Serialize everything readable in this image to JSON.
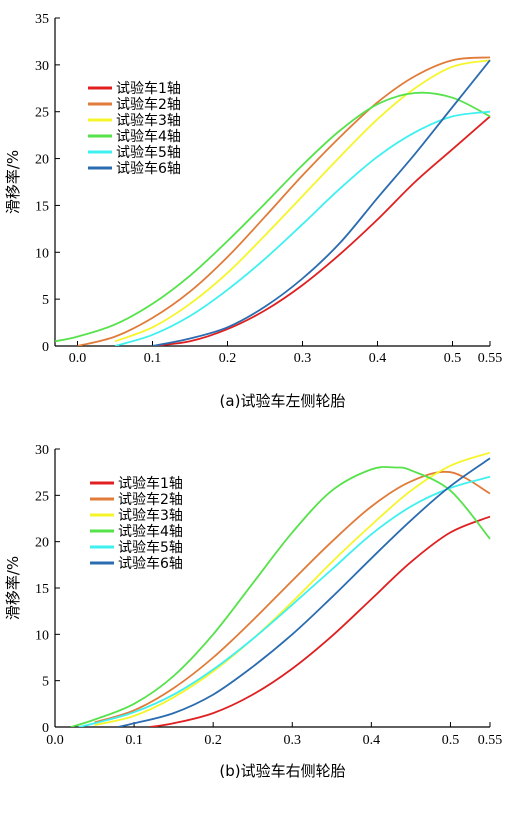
{
  "chart_data": [
    {
      "type": "line",
      "caption": "(a)试验车左侧轮胎",
      "ylabel": "滑移率/%",
      "xlabel": "",
      "xlim": [
        -0.03,
        0.55
      ],
      "ylim": [
        0,
        35
      ],
      "xticks": [
        "0.0",
        "0.1",
        "0.2",
        "0.3",
        "0.4",
        "0.5",
        "0.55"
      ],
      "xtick_values": [
        0.0,
        0.1,
        0.2,
        0.3,
        0.4,
        0.5,
        0.55
      ],
      "yticks": [
        "0",
        "5",
        "10",
        "15",
        "20",
        "25",
        "30",
        "35"
      ],
      "ytick_values": [
        0,
        5,
        10,
        15,
        20,
        25,
        30,
        35
      ],
      "legend_position": "upper-left",
      "series": [
        {
          "name": "试验车1轴",
          "color": "#e02020",
          "x": [
            0.1,
            0.15,
            0.2,
            0.25,
            0.3,
            0.35,
            0.4,
            0.45,
            0.5,
            0.55
          ],
          "y": [
            0.0,
            0.5,
            1.8,
            3.8,
            6.5,
            9.8,
            13.5,
            17.5,
            21.0,
            24.5
          ]
        },
        {
          "name": "试验车2轴",
          "color": "#e07b3a",
          "x": [
            0.0,
            0.05,
            0.1,
            0.15,
            0.2,
            0.25,
            0.3,
            0.35,
            0.4,
            0.45,
            0.5,
            0.55
          ],
          "y": [
            0.0,
            1.0,
            3.0,
            5.8,
            9.5,
            13.8,
            18.2,
            22.3,
            26.0,
            28.8,
            30.5,
            30.8
          ]
        },
        {
          "name": "试验车3轴",
          "color": "#f5f52a",
          "x": [
            0.05,
            0.1,
            0.15,
            0.2,
            0.25,
            0.3,
            0.35,
            0.4,
            0.45,
            0.5,
            0.55
          ],
          "y": [
            0.5,
            2.0,
            4.5,
            7.8,
            11.8,
            16.0,
            20.2,
            24.2,
            27.5,
            29.8,
            30.5
          ]
        },
        {
          "name": "试验车4轴",
          "color": "#55e24a",
          "x": [
            -0.03,
            0.0,
            0.05,
            0.1,
            0.15,
            0.2,
            0.25,
            0.3,
            0.35,
            0.4,
            0.45,
            0.5,
            0.55
          ],
          "y": [
            0.5,
            1.0,
            2.3,
            4.5,
            7.5,
            11.2,
            15.2,
            19.3,
            23.0,
            25.8,
            27.0,
            26.5,
            24.5
          ]
        },
        {
          "name": "试验车5轴",
          "color": "#3ff0f0",
          "x": [
            0.05,
            0.1,
            0.15,
            0.2,
            0.25,
            0.3,
            0.35,
            0.4,
            0.45,
            0.5,
            0.55
          ],
          "y": [
            0.0,
            1.2,
            3.2,
            6.0,
            9.3,
            13.0,
            16.8,
            20.2,
            22.8,
            24.5,
            25.0
          ]
        },
        {
          "name": "试验车6轴",
          "color": "#2b6cb0",
          "x": [
            0.1,
            0.15,
            0.2,
            0.25,
            0.3,
            0.35,
            0.4,
            0.45,
            0.5,
            0.55
          ],
          "y": [
            0.0,
            0.8,
            2.0,
            4.2,
            7.2,
            11.0,
            15.8,
            20.5,
            25.5,
            30.5
          ]
        }
      ]
    },
    {
      "type": "line",
      "caption": "(b)试验车右侧轮胎",
      "ylabel": "滑移率/%",
      "xlabel": "",
      "xlim": [
        0.0,
        0.55
      ],
      "ylim": [
        0,
        30
      ],
      "xticks": [
        "0.0",
        "0.1",
        "0.2",
        "0.3",
        "0.4",
        "0.5",
        "0.55"
      ],
      "xtick_values": [
        0.0,
        0.1,
        0.2,
        0.3,
        0.4,
        0.5,
        0.55
      ],
      "yticks": [
        "0",
        "5",
        "10",
        "15",
        "20",
        "25",
        "30"
      ],
      "ytick_values": [
        0,
        5,
        10,
        15,
        20,
        25,
        30
      ],
      "legend_position": "upper-left",
      "series": [
        {
          "name": "试验车1轴",
          "color": "#e02020",
          "x": [
            0.12,
            0.15,
            0.2,
            0.25,
            0.3,
            0.35,
            0.4,
            0.45,
            0.5,
            0.55
          ],
          "y": [
            0.0,
            0.4,
            1.5,
            3.5,
            6.3,
            9.8,
            13.8,
            17.8,
            21.0,
            22.7
          ]
        },
        {
          "name": "试验车2轴",
          "color": "#e07b3a",
          "x": [
            0.05,
            0.1,
            0.15,
            0.2,
            0.25,
            0.3,
            0.35,
            0.4,
            0.45,
            0.5,
            0.55
          ],
          "y": [
            0.5,
            1.8,
            4.2,
            7.5,
            11.5,
            15.8,
            20.0,
            23.8,
            26.5,
            27.5,
            25.2
          ]
        },
        {
          "name": "试验车3轴",
          "color": "#f5f52a",
          "x": [
            0.05,
            0.1,
            0.15,
            0.2,
            0.25,
            0.3,
            0.35,
            0.4,
            0.45,
            0.5,
            0.55
          ],
          "y": [
            0.2,
            1.2,
            3.2,
            6.0,
            9.5,
            13.5,
            17.8,
            21.8,
            25.5,
            28.2,
            29.6
          ]
        },
        {
          "name": "试验车4轴",
          "color": "#55e24a",
          "x": [
            0.02,
            0.05,
            0.1,
            0.15,
            0.2,
            0.25,
            0.3,
            0.35,
            0.4,
            0.43,
            0.45,
            0.5,
            0.55
          ],
          "y": [
            0.0,
            0.8,
            2.5,
            5.5,
            10.0,
            15.5,
            21.0,
            25.5,
            27.8,
            28.0,
            27.7,
            25.5,
            20.3
          ]
        },
        {
          "name": "试验车5轴",
          "color": "#3ff0f0",
          "x": [
            0.03,
            0.05,
            0.1,
            0.15,
            0.2,
            0.25,
            0.3,
            0.35,
            0.4,
            0.45,
            0.5,
            0.55
          ],
          "y": [
            0.0,
            0.4,
            1.6,
            3.5,
            6.2,
            9.5,
            13.2,
            17.0,
            20.8,
            23.8,
            25.8,
            27.0
          ]
        },
        {
          "name": "试验车6轴",
          "color": "#2b6cb0",
          "x": [
            0.08,
            0.1,
            0.15,
            0.2,
            0.25,
            0.3,
            0.35,
            0.4,
            0.45,
            0.5,
            0.55
          ],
          "y": [
            0.0,
            0.4,
            1.5,
            3.5,
            6.5,
            10.0,
            14.0,
            18.2,
            22.3,
            26.0,
            29.0
          ]
        }
      ]
    }
  ]
}
